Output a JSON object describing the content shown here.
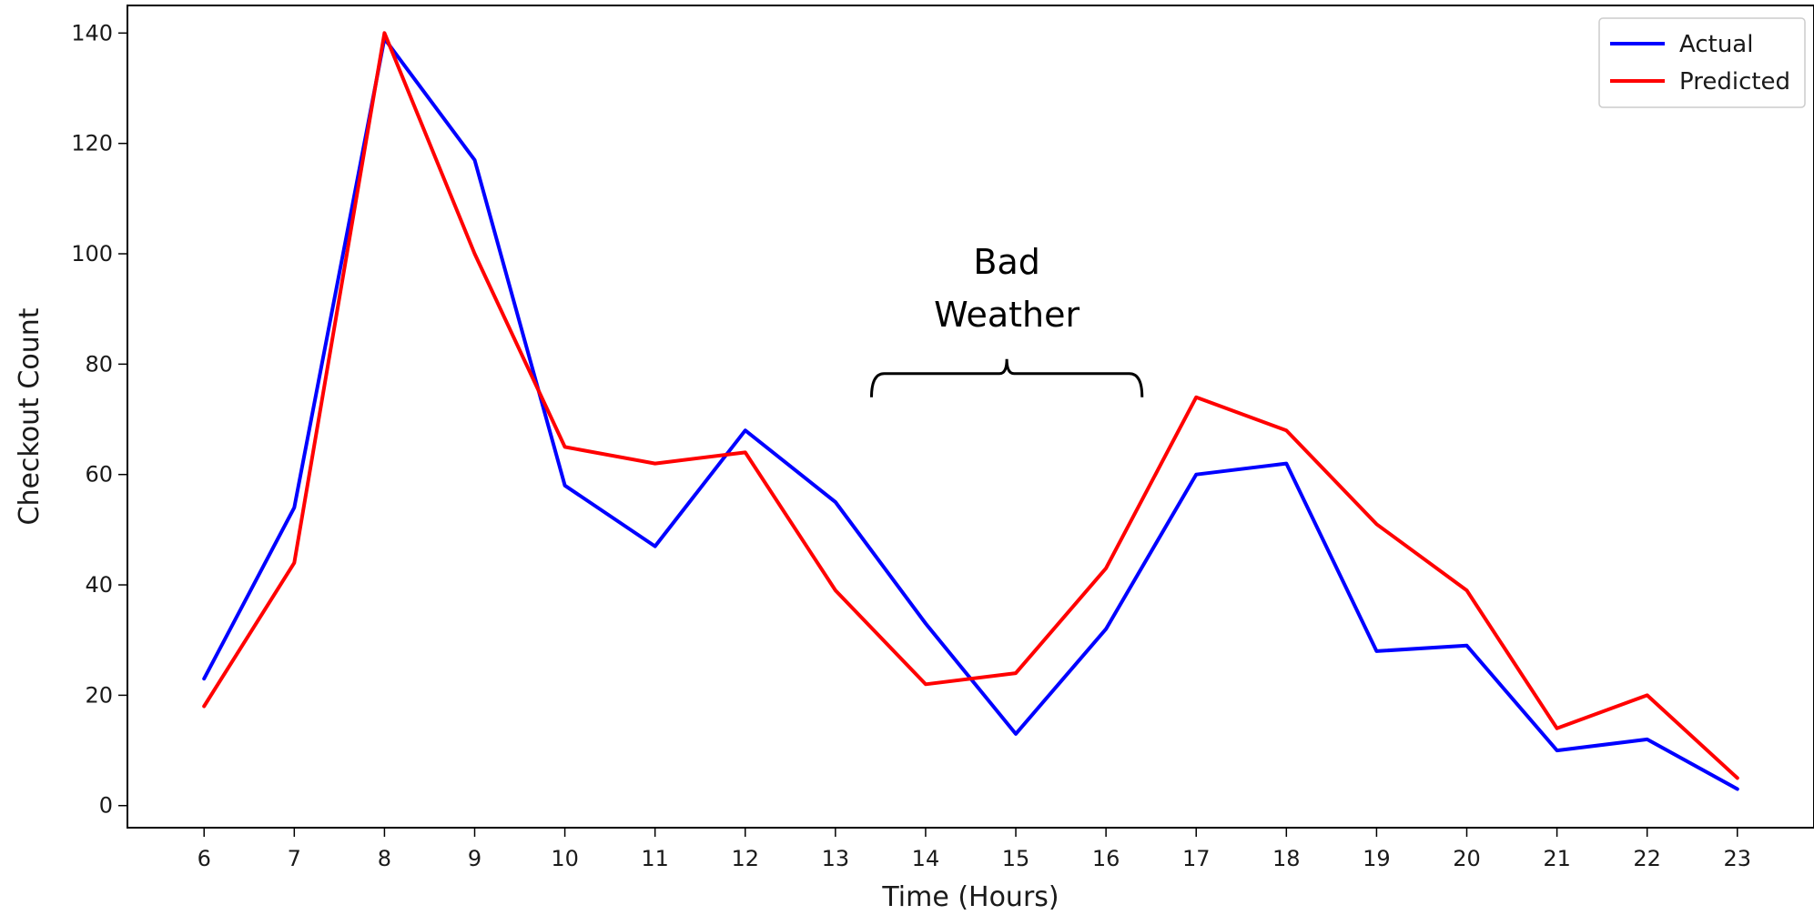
{
  "chart_data": {
    "type": "line",
    "xlabel": "Time (Hours)",
    "ylabel": "Checkout Count",
    "x": [
      6,
      7,
      8,
      9,
      10,
      11,
      12,
      13,
      14,
      15,
      16,
      17,
      18,
      19,
      20,
      21,
      22,
      23
    ],
    "xlim": [
      5.15,
      23.85
    ],
    "ylim": [
      -4,
      145
    ],
    "xticks": [
      "6",
      "7",
      "8",
      "9",
      "10",
      "11",
      "12",
      "13",
      "14",
      "15",
      "16",
      "17",
      "18",
      "19",
      "20",
      "21",
      "22",
      "23"
    ],
    "yticks": [
      0,
      20,
      40,
      60,
      80,
      100,
      120,
      140
    ],
    "grid": false,
    "legend_position": "top-right",
    "series": [
      {
        "name": "Actual",
        "color": "#0000ff",
        "values": [
          23,
          54,
          139,
          117,
          58,
          47,
          68,
          55,
          33,
          13,
          32,
          60,
          62,
          28,
          29,
          10,
          12,
          3
        ]
      },
      {
        "name": "Predicted",
        "color": "#ff0000",
        "values": [
          18,
          44,
          140,
          100,
          65,
          62,
          64,
          39,
          22,
          24,
          43,
          74,
          68,
          51,
          39,
          14,
          20,
          5
        ]
      }
    ],
    "annotations": [
      {
        "lines": [
          "Bad",
          "Weather"
        ],
        "shape": "curly-brace",
        "x_from": 13.4,
        "x_to": 16.4,
        "y": 74
      }
    ]
  }
}
